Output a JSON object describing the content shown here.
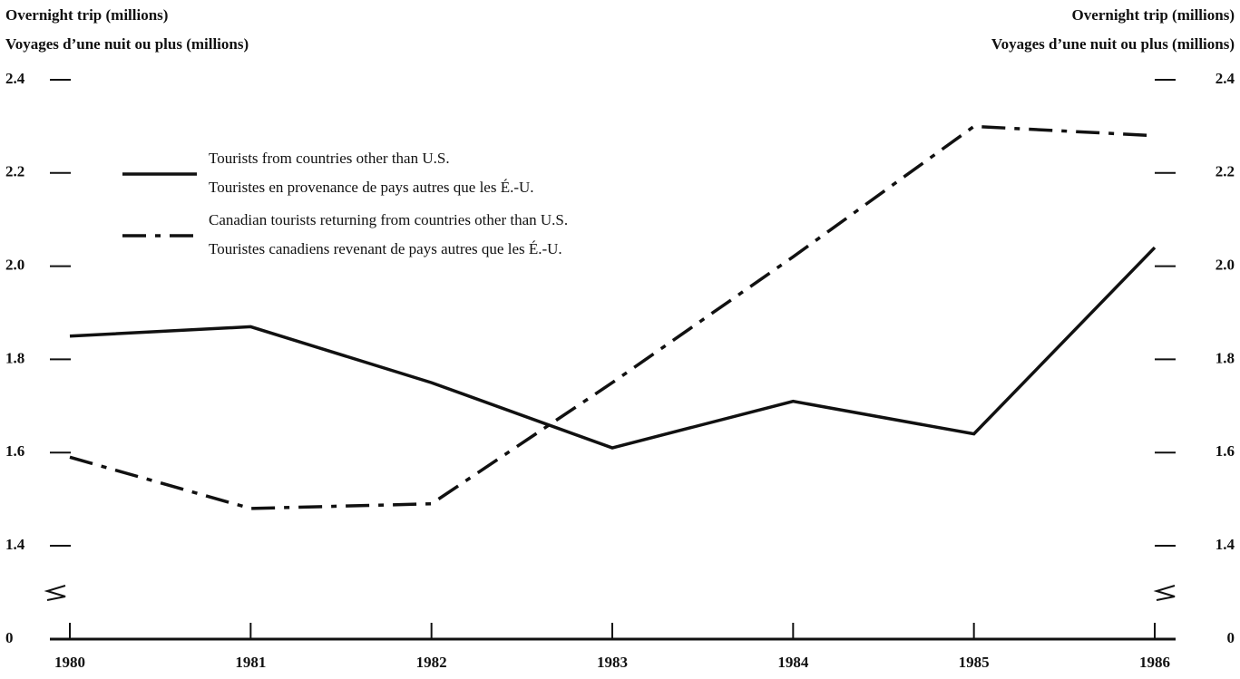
{
  "chart_data": {
    "type": "line",
    "y_label": [
      "Overnight trip (millions)",
      "Voyages d’une nuit ou plus (millions)"
    ],
    "y2_label": [
      "Overnight trip (millions)",
      "Voyages d’une nuit ou plus (millions)"
    ],
    "categories": [
      "1980",
      "1981",
      "1982",
      "1983",
      "1984",
      "1985",
      "1986"
    ],
    "series": [
      {
        "name": [
          "Tourists from countries other than U.S.",
          "Touristes en provenance de pays autres que les É.-U."
        ],
        "color": "#111111",
        "dash": "solid",
        "values": [
          1.85,
          1.87,
          1.75,
          1.61,
          1.71,
          1.64,
          2.04
        ]
      },
      {
        "name": [
          "Canadian tourists returning from countries other than U.S.",
          "Touristes canadiens revenant de pays autres que les É.-U."
        ],
        "color": "#111111",
        "dash": "dashdot",
        "values": [
          1.59,
          1.48,
          1.49,
          1.75,
          2.02,
          2.3,
          2.28
        ]
      }
    ],
    "ylim": [
      1.4,
      2.4
    ],
    "yticks": [
      0,
      {
        "value": 1.4,
        "label": "1.4"
      },
      {
        "value": 1.6,
        "label": "1.6"
      },
      {
        "value": 1.8,
        "label": "1.8"
      },
      {
        "value": 2.0,
        "label": "2.0"
      },
      {
        "value": 2.2,
        "label": "2.2"
      },
      {
        "value": 2.4,
        "label": "2.4"
      }
    ],
    "y2lim": [
      1.4,
      2.4
    ],
    "y2ticks": [
      0,
      {
        "value": 1.4,
        "label": "1.4"
      },
      {
        "value": 1.6,
        "label": "1.6"
      },
      {
        "value": 1.8,
        "label": "1.8"
      },
      {
        "value": 2.0,
        "label": "2.0"
      },
      {
        "value": 2.2,
        "label": "2.2"
      },
      {
        "value": 2.4,
        "label": "2.4"
      }
    ],
    "axis_break": true
  }
}
